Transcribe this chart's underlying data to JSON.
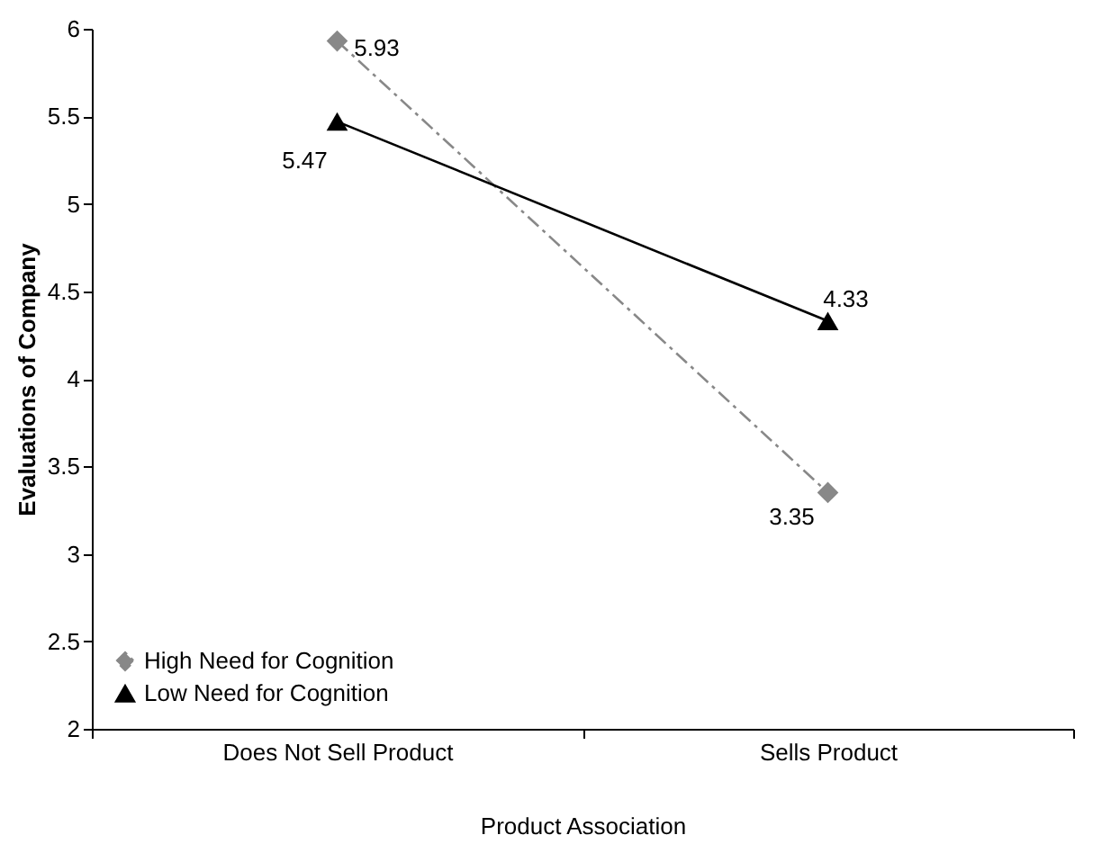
{
  "chart_data": {
    "type": "line",
    "xlabel": "Product Association",
    "ylabel": "Evaluations of Company",
    "categories": [
      "Does Not Sell Product",
      "Sells Product"
    ],
    "series": [
      {
        "name": "High Need for Cognition",
        "color": "#888888",
        "values": [
          5.93,
          3.35
        ],
        "marker": "diamond",
        "line_style": "dashdot"
      },
      {
        "name": "Low Need for Cognition",
        "color": "#000000",
        "values": [
          5.47,
          4.33
        ],
        "marker": "triangle",
        "line_style": "solid"
      }
    ],
    "ylim": [
      2,
      6
    ],
    "yticks": [
      2,
      2.5,
      3,
      3.5,
      4,
      4.5,
      5,
      5.5,
      6
    ],
    "grid": false,
    "legend": "bottom left",
    "data_labels": true
  }
}
